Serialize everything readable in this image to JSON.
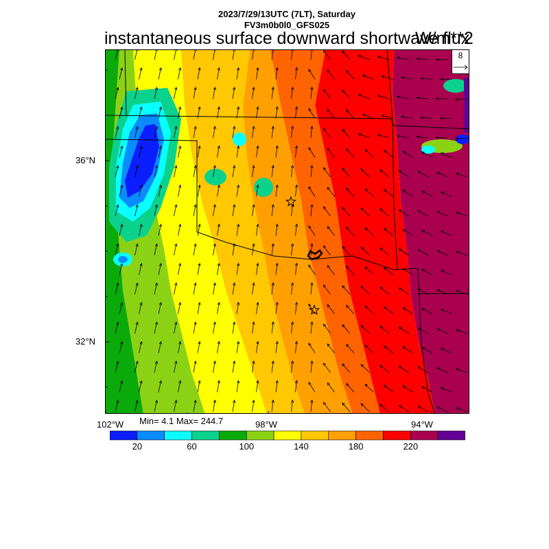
{
  "header": {
    "date_line": "2023/7/29/13UTC (7LT), Saturday",
    "model_line": "FV3m0b0l0_GFS025",
    "title": "instantaneous surface downward shortwave flux",
    "units": "W/m**2"
  },
  "axes": {
    "lat_labels": [
      "36°N",
      "32°N"
    ],
    "lon_labels": [
      "102°W",
      "98°W",
      "94°W"
    ]
  },
  "wind_reference": {
    "value": "8"
  },
  "stats": {
    "minmax": "Min= 4.1 Max= 244.7"
  },
  "colorbar": {
    "colors": [
      "#0a1eff",
      "#0a8cff",
      "#0affff",
      "#0ad28c",
      "#0aaa0a",
      "#8cd214",
      "#ffff00",
      "#ffc800",
      "#ffa000",
      "#ff6400",
      "#ff0000",
      "#aa0050",
      "#640096"
    ],
    "labels": [
      "20",
      "60",
      "100",
      "140",
      "180",
      "220"
    ]
  },
  "markers": [
    {
      "name": "station-star-north"
    },
    {
      "name": "station-star-south"
    }
  ]
}
